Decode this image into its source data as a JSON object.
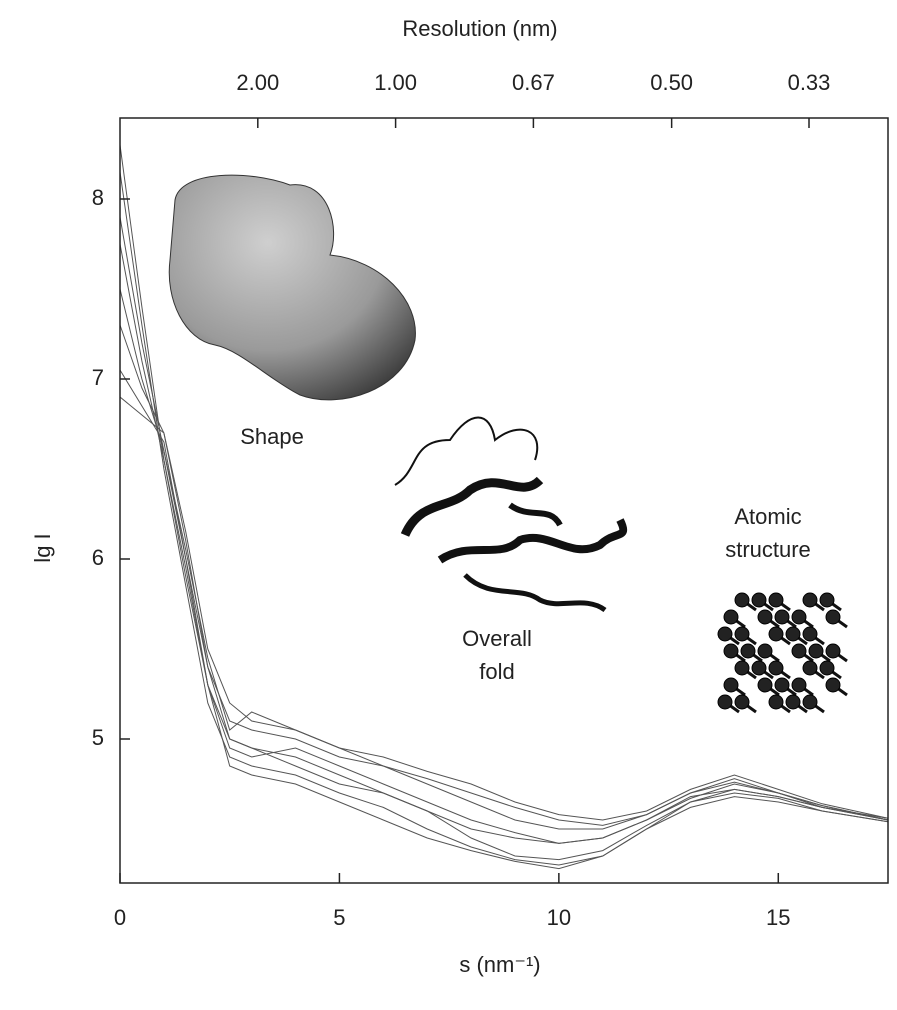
{
  "chart_data": {
    "type": "line",
    "x_label": "s (nm⁻¹)",
    "y_label": "lg I",
    "x2_label": "Resolution (nm)",
    "xlim": [
      0,
      17.5
    ],
    "ylim": [
      4.2,
      8.45
    ],
    "xticks": [
      0,
      5,
      10,
      15
    ],
    "yticks": [
      5,
      6,
      7,
      8
    ],
    "x2ticks": [
      {
        "value": 3.14,
        "label": "2.00"
      },
      {
        "value": 6.28,
        "label": "1.00"
      },
      {
        "value": 9.42,
        "label": "0.67"
      },
      {
        "value": 12.57,
        "label": "0.50"
      },
      {
        "value": 15.7,
        "label": "0.33"
      }
    ],
    "annotations": [
      [
        "Shape"
      ],
      [
        "Overall",
        "fold"
      ],
      [
        "Atomic",
        "structure"
      ]
    ],
    "x": [
      0,
      0.5,
      1,
      1.5,
      2,
      2.5,
      3,
      4,
      5,
      6,
      7,
      8,
      9,
      10,
      11,
      12,
      13,
      14,
      15,
      16,
      17.5
    ],
    "series": [
      {
        "color": "#555555",
        "values": [
          8.3,
          7.4,
          6.55,
          5.9,
          5.3,
          5.0,
          4.95,
          4.85,
          4.75,
          4.7,
          4.6,
          4.5,
          4.45,
          4.42,
          4.45,
          4.55,
          4.68,
          4.72,
          4.68,
          4.62,
          4.55
        ]
      },
      {
        "color": "#555555",
        "values": [
          8.15,
          7.3,
          6.5,
          5.85,
          5.2,
          4.9,
          4.85,
          4.8,
          4.7,
          4.62,
          4.5,
          4.4,
          4.33,
          4.3,
          4.35,
          4.5,
          4.65,
          4.72,
          4.68,
          4.62,
          4.55
        ]
      },
      {
        "color": "#555555",
        "values": [
          7.9,
          7.2,
          6.6,
          6.0,
          5.4,
          5.1,
          5.05,
          5.0,
          4.9,
          4.85,
          4.78,
          4.7,
          4.62,
          4.55,
          4.52,
          4.58,
          4.7,
          4.78,
          4.7,
          4.63,
          4.55
        ]
      },
      {
        "color": "#555555",
        "values": [
          7.75,
          7.1,
          6.55,
          5.95,
          5.3,
          4.95,
          4.9,
          4.95,
          4.85,
          4.75,
          4.65,
          4.55,
          4.48,
          4.42,
          4.45,
          4.55,
          4.67,
          4.75,
          4.7,
          4.62,
          4.56
        ]
      },
      {
        "color": "#555555",
        "values": [
          7.5,
          7.0,
          6.6,
          6.05,
          5.45,
          5.05,
          5.15,
          5.05,
          4.95,
          4.9,
          4.82,
          4.75,
          4.65,
          4.58,
          4.55,
          4.6,
          4.72,
          4.8,
          4.72,
          4.64,
          4.56
        ]
      },
      {
        "color": "#555555",
        "values": [
          7.3,
          6.95,
          6.7,
          6.1,
          5.4,
          5.0,
          4.95,
          4.9,
          4.8,
          4.7,
          4.6,
          4.45,
          4.35,
          4.33,
          4.38,
          4.52,
          4.65,
          4.7,
          4.67,
          4.6,
          4.54
        ]
      },
      {
        "color": "#555555",
        "values": [
          7.05,
          6.85,
          6.65,
          6.0,
          5.3,
          4.85,
          4.8,
          4.75,
          4.65,
          4.55,
          4.45,
          4.38,
          4.32,
          4.28,
          4.35,
          4.5,
          4.62,
          4.68,
          4.65,
          4.6,
          4.54
        ]
      },
      {
        "color": "#555555",
        "values": [
          6.9,
          6.8,
          6.7,
          6.15,
          5.5,
          5.2,
          5.1,
          5.05,
          4.95,
          4.85,
          4.75,
          4.65,
          4.55,
          4.5,
          4.5,
          4.58,
          4.7,
          4.76,
          4.7,
          4.63,
          4.55
        ]
      }
    ]
  }
}
